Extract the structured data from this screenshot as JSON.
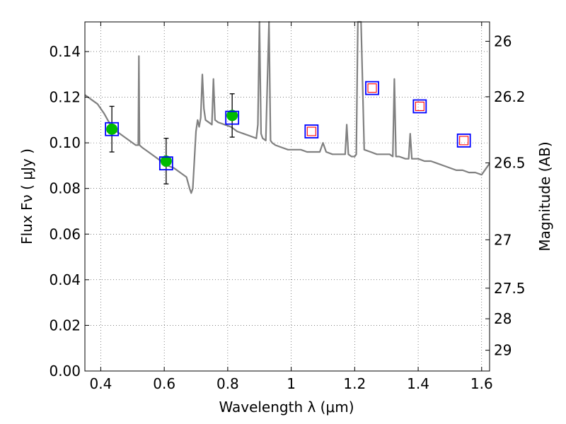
{
  "chart_data": {
    "type": "line",
    "xlabel": "Wavelength  λ (μm)",
    "ylabel": "Flux  Fν  ( μJy )",
    "ylabel_right": "Magnitude (AB)",
    "xlim": [
      0.35,
      1.625
    ],
    "ylim": [
      0.0,
      0.153
    ],
    "grid": true,
    "x_ticks": [
      0.4,
      0.6,
      0.8,
      1.0,
      1.2,
      1.4,
      1.6
    ],
    "x_tick_labels": [
      "0.4",
      "0.6",
      "0.8",
      "1",
      "1.2",
      "1.4",
      "1.6"
    ],
    "y_ticks": [
      0.0,
      0.02,
      0.04,
      0.06,
      0.08,
      0.1,
      0.12,
      0.14
    ],
    "y_tick_labels": [
      "0.00",
      "0.02",
      "0.04",
      "0.06",
      "0.08",
      "0.10",
      "0.12",
      "0.14"
    ],
    "right_ticks": [
      {
        "label": "26",
        "flux": 0.1445
      },
      {
        "label": "26.2",
        "flux": 0.1202
      },
      {
        "label": "26.5",
        "flux": 0.0912
      },
      {
        "label": "27",
        "flux": 0.0575
      },
      {
        "label": "27.5",
        "flux": 0.0363
      },
      {
        "label": "28",
        "flux": 0.0229
      },
      {
        "label": "29",
        "flux": 0.0091
      }
    ],
    "series": [
      {
        "style": "line",
        "color": "#808080",
        "x": [
          0.35,
          0.37,
          0.39,
          0.41,
          0.43,
          0.45,
          0.47,
          0.49,
          0.51,
          0.518,
          0.52,
          0.522,
          0.53,
          0.55,
          0.57,
          0.59,
          0.61,
          0.63,
          0.65,
          0.67,
          0.68,
          0.685,
          0.69,
          0.7,
          0.705,
          0.71,
          0.715,
          0.72,
          0.725,
          0.73,
          0.75,
          0.755,
          0.76,
          0.77,
          0.79,
          0.81,
          0.83,
          0.85,
          0.87,
          0.89,
          0.895,
          0.9,
          0.905,
          0.91,
          0.92,
          0.93,
          0.935,
          0.94,
          0.95,
          0.97,
          0.99,
          1.01,
          1.03,
          1.05,
          1.07,
          1.09,
          1.1,
          1.11,
          1.13,
          1.15,
          1.17,
          1.175,
          1.18,
          1.19,
          1.2,
          1.205,
          1.21,
          1.215,
          1.22,
          1.23,
          1.25,
          1.27,
          1.29,
          1.31,
          1.32,
          1.325,
          1.33,
          1.34,
          1.36,
          1.37,
          1.375,
          1.38,
          1.4,
          1.42,
          1.44,
          1.46,
          1.48,
          1.5,
          1.52,
          1.54,
          1.56,
          1.58,
          1.6,
          1.62,
          1.625
        ],
        "y": [
          0.121,
          0.119,
          0.117,
          0.113,
          0.108,
          0.105,
          0.103,
          0.101,
          0.099,
          0.099,
          0.138,
          0.099,
          0.098,
          0.096,
          0.094,
          0.092,
          0.09,
          0.089,
          0.087,
          0.085,
          0.08,
          0.078,
          0.08,
          0.105,
          0.11,
          0.107,
          0.111,
          0.13,
          0.115,
          0.11,
          0.108,
          0.128,
          0.11,
          0.109,
          0.108,
          0.107,
          0.105,
          0.104,
          0.103,
          0.102,
          0.108,
          0.153,
          0.104,
          0.102,
          0.101,
          0.153,
          0.101,
          0.1,
          0.099,
          0.098,
          0.097,
          0.097,
          0.097,
          0.096,
          0.096,
          0.096,
          0.1,
          0.096,
          0.095,
          0.095,
          0.095,
          0.108,
          0.095,
          0.094,
          0.094,
          0.095,
          0.153,
          0.153,
          0.153,
          0.097,
          0.096,
          0.095,
          0.095,
          0.095,
          0.094,
          0.128,
          0.094,
          0.094,
          0.093,
          0.093,
          0.104,
          0.093,
          0.093,
          0.092,
          0.092,
          0.091,
          0.09,
          0.089,
          0.088,
          0.088,
          0.087,
          0.087,
          0.086,
          0.09,
          0.091
        ]
      },
      {
        "style": "points-green-errorbars",
        "color": "#00bb00",
        "x": [
          0.435,
          0.606,
          0.814
        ],
        "y": [
          0.106,
          0.092,
          0.112
        ],
        "yerr": [
          0.01,
          0.01,
          0.0095
        ]
      },
      {
        "style": "open-square-blue",
        "color": "#0000ff",
        "x": [
          0.435,
          0.606,
          0.814,
          1.064,
          1.255,
          1.405,
          1.544
        ],
        "y": [
          0.106,
          0.091,
          0.111,
          0.105,
          0.124,
          0.116,
          0.101
        ]
      },
      {
        "style": "open-square-red",
        "color": "#ff0000",
        "x": [
          1.064,
          1.255,
          1.405,
          1.544
        ],
        "y": [
          0.105,
          0.124,
          0.116,
          0.101
        ]
      }
    ]
  }
}
